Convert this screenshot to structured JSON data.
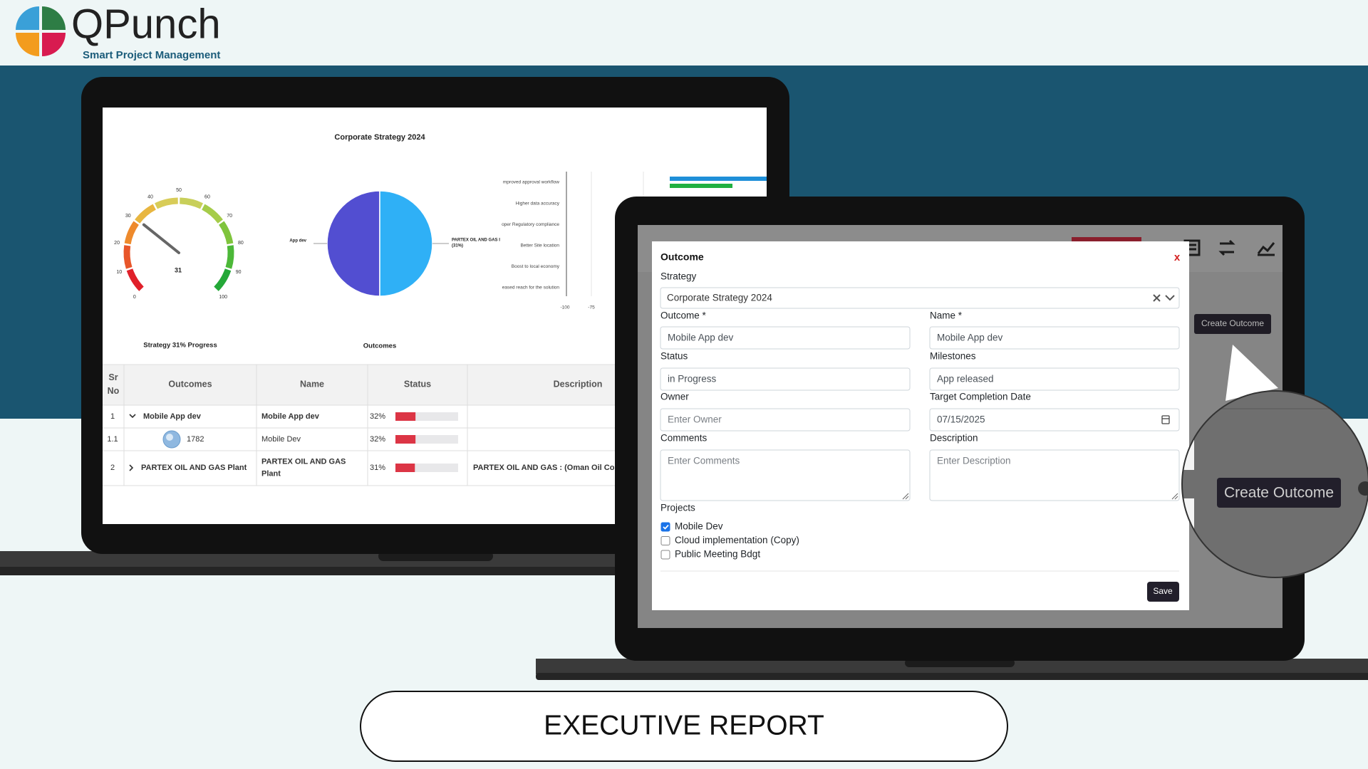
{
  "logo": {
    "name": "QPunch",
    "tagline": "Smart Project Management"
  },
  "dashboard": {
    "title": "Corporate Strategy 2024",
    "gauge": {
      "ticks": [
        0,
        10,
        20,
        30,
        40,
        50,
        60,
        70,
        80,
        90,
        100
      ],
      "value": 31,
      "caption": "Strategy 31% Progress"
    },
    "pie": {
      "labels": [
        [
          "App dev"
        ],
        [
          "PARTEX OIL AND GAS I",
          "(31%)"
        ]
      ],
      "values": [
        50,
        50
      ],
      "colors": [
        "#524ed1",
        "#2fb0f6"
      ],
      "caption": "Outcomes"
    },
    "bar_chart": {
      "categories": [
        "mproved approval workflow",
        "Higher data accuracy",
        "oper Regulatory compliance",
        "Better Site location",
        "Boost to local economy",
        "eased reach for the solution"
      ],
      "xticks": [
        -100,
        -75
      ]
    },
    "table": {
      "headers": [
        [
          "Sr",
          "No"
        ],
        [
          "Outcomes"
        ],
        [
          "Name"
        ],
        [
          "Status"
        ],
        [
          "Description"
        ]
      ],
      "rows": [
        {
          "sr": "1",
          "toggle": "expanded",
          "outcome": [
            "Mobile App dev"
          ],
          "name": [
            "Mobile App dev"
          ],
          "status": {
            "value": 32,
            "label": "32%"
          }
        },
        {
          "sr": "1.1",
          "avatar": true,
          "outcome": [
            "1782"
          ],
          "name": [
            "Mobile Dev"
          ],
          "status": {
            "value": 32,
            "label": "32%"
          }
        },
        {
          "sr": "2",
          "toggle": "collapsed",
          "outcome": [
            "PARTEX OIL AND GAS Plant"
          ],
          "name": [
            "PARTEX OIL AND GAS",
            "Plant"
          ],
          "status": {
            "value": 31,
            "label": "31%"
          },
          "description": "PARTEX OIL AND GAS : (Oman Oil Co"
        }
      ]
    }
  },
  "background_button": "Create Outcome",
  "modal": {
    "title": "Outcome",
    "close": "x",
    "strategy": {
      "label": "Strategy",
      "value": "Corporate Strategy 2024"
    },
    "fields": [
      {
        "label": "Outcome *",
        "value": "Mobile App dev"
      },
      {
        "label": "Name *",
        "value": "Mobile App dev"
      },
      {
        "label": "Status",
        "value": "in Progress"
      },
      {
        "label": "Milestones",
        "value": "App released"
      },
      {
        "label": "Owner",
        "placeholder": "Enter Owner"
      },
      {
        "label": "Target Completion Date",
        "value": "07/15/2025"
      },
      {
        "label": "Comments",
        "placeholder": "Enter Comments"
      },
      {
        "label": "Description",
        "placeholder": "Enter Description"
      }
    ],
    "projects": {
      "label": "Projects",
      "items": [
        {
          "name": "Mobile Dev",
          "checked": true
        },
        {
          "name": "Cloud implementation (Copy)",
          "checked": false
        },
        {
          "name": "Public Meeting Bdgt",
          "checked": false
        }
      ]
    },
    "save": "Save"
  },
  "zoom_button": "Create Outcome",
  "footer": "EXECUTIVE REPORT"
}
